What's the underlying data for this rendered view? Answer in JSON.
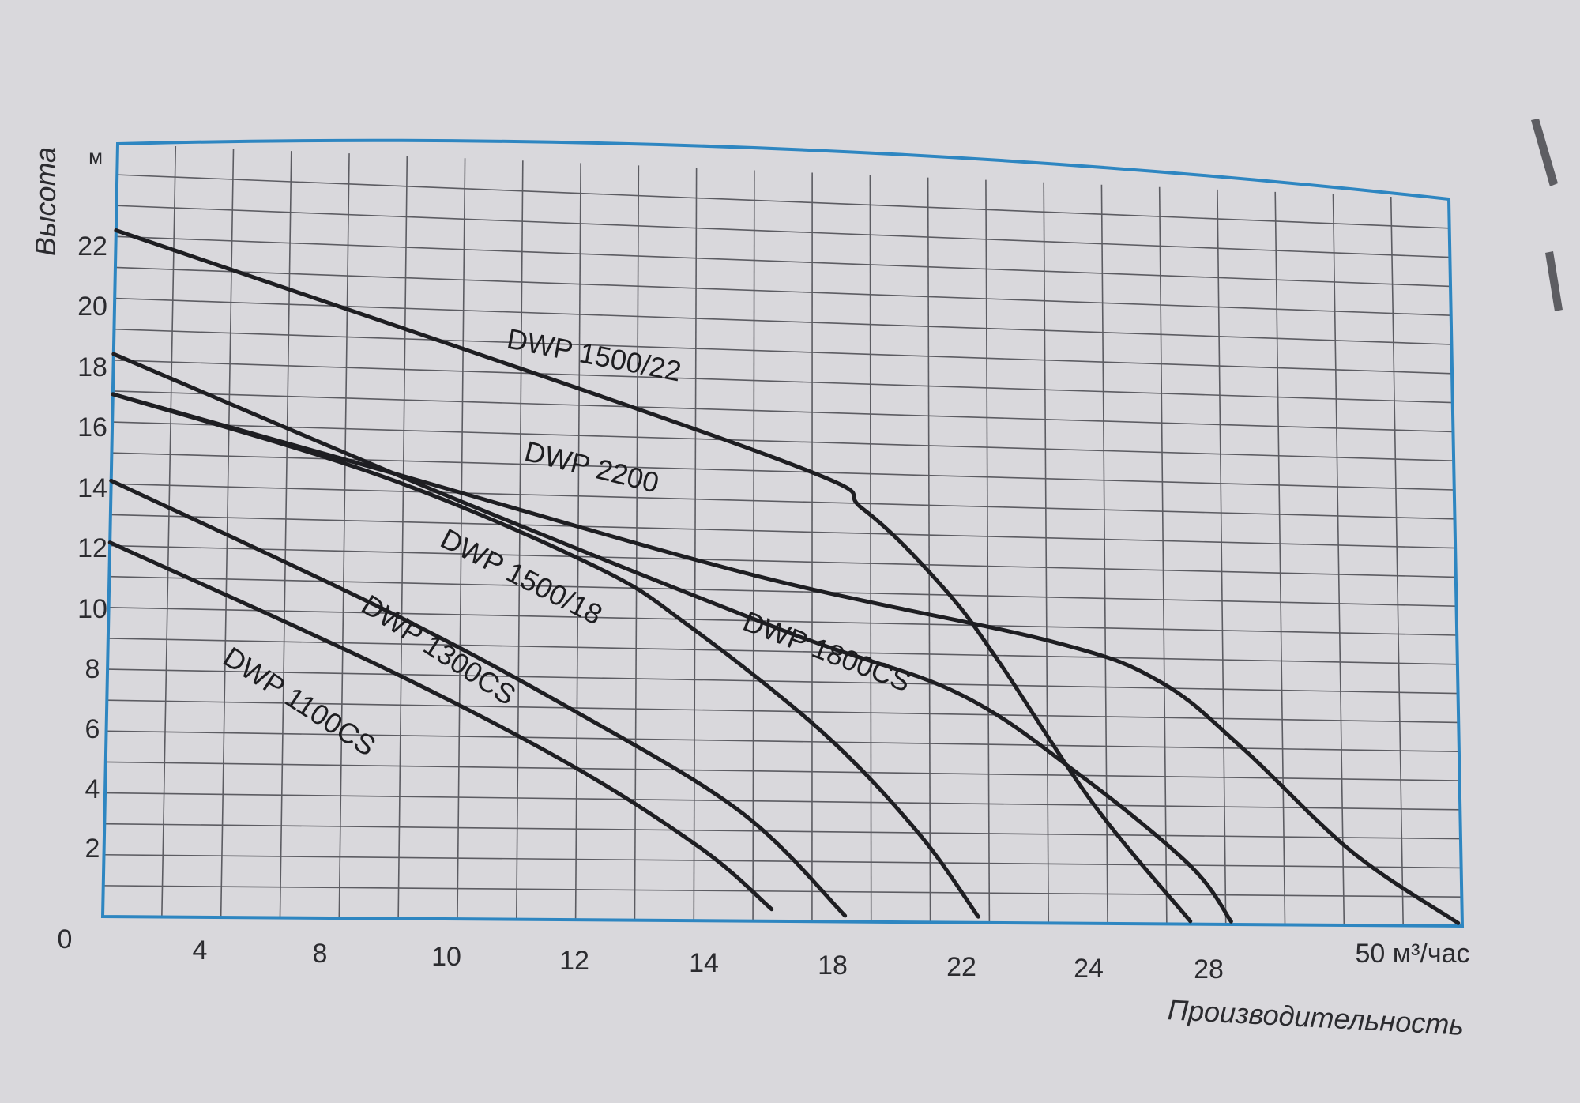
{
  "chart_data": {
    "type": "line",
    "title": "",
    "xlabel": "Производительность",
    "ylabel": "Высота",
    "y_unit": "м",
    "x_unit_label": "50 м³/час",
    "origin_label": "0",
    "x_tick_labels": [
      "4",
      "8",
      "10",
      "12",
      "14",
      "18",
      "22",
      "24",
      "28",
      "50 м³/час"
    ],
    "y_tick_labels": [
      "2",
      "4",
      "6",
      "8",
      "10",
      "12",
      "14",
      "16",
      "18",
      "20",
      "22"
    ],
    "ylim": [
      0,
      25
    ],
    "grid": true,
    "series": [
      {
        "name": "DWP 1500/22",
        "points": [
          [
            0,
            22.2
          ],
          [
            0.49,
            15.5
          ],
          [
            0.56,
            13.8
          ],
          [
            0.62,
            11.2
          ],
          [
            0.66,
            8.8
          ],
          [
            0.73,
            4.0
          ],
          [
            0.8,
            0.1
          ]
        ]
      },
      {
        "name": "DWP 2200",
        "points": [
          [
            0,
            16.9
          ],
          [
            0.2,
            14.7
          ],
          [
            0.48,
            11.5
          ],
          [
            0.7,
            9.5
          ],
          [
            0.78,
            8.2
          ],
          [
            0.84,
            6.0
          ],
          [
            0.92,
            2.5
          ],
          [
            0.997,
            0.1
          ]
        ]
      },
      {
        "name": "DWP 1800CS",
        "points": [
          [
            0,
            18.2
          ],
          [
            0.25,
            13.9
          ],
          [
            0.5,
            9.7
          ],
          [
            0.63,
            7.7
          ],
          [
            0.72,
            5.0
          ],
          [
            0.8,
            2.0
          ],
          [
            0.83,
            0.1
          ]
        ]
      },
      {
        "name": "DWP 1500/18",
        "points": [
          [
            0,
            16.9
          ],
          [
            0.2,
            14.5
          ],
          [
            0.36,
            11.7
          ],
          [
            0.43,
            9.8
          ],
          [
            0.53,
            6.3
          ],
          [
            0.6,
            3.0
          ],
          [
            0.644,
            0.2
          ]
        ]
      },
      {
        "name": "DWP 1300CS",
        "points": [
          [
            0,
            14.1
          ],
          [
            0.21,
            10.0
          ],
          [
            0.35,
            6.8
          ],
          [
            0.47,
            3.6
          ],
          [
            0.546,
            0.2
          ]
        ]
      },
      {
        "name": "DWP 1100CS",
        "points": [
          [
            0,
            12.1
          ],
          [
            0.2,
            8.3
          ],
          [
            0.34,
            5.2
          ],
          [
            0.44,
            2.4
          ],
          [
            0.492,
            0.4
          ]
        ]
      }
    ]
  }
}
